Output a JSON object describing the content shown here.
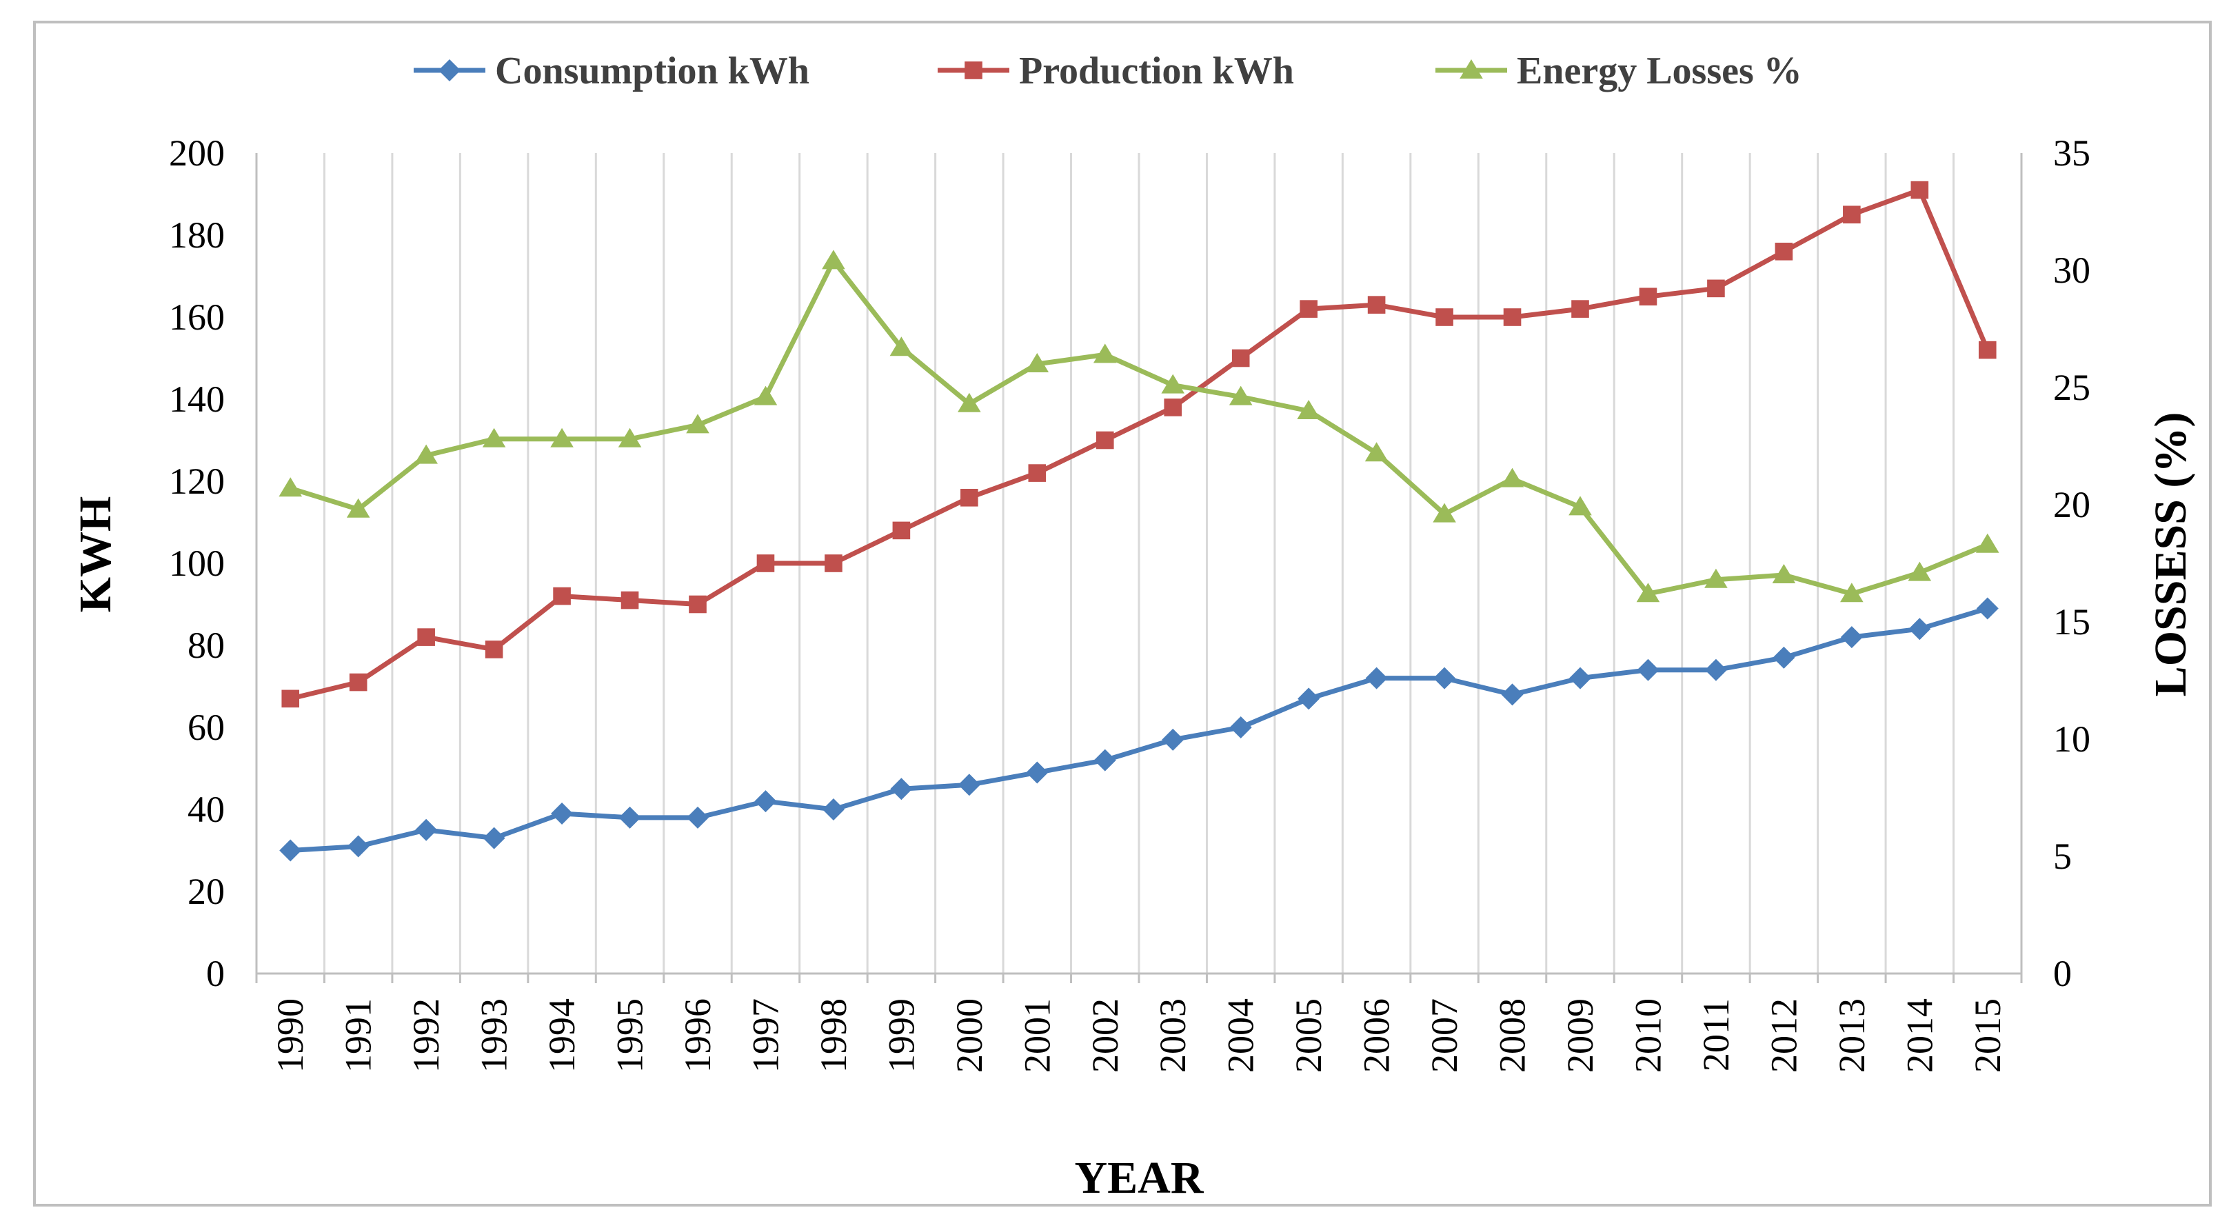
{
  "chart_data": {
    "type": "line",
    "categories": [
      "1990",
      "1991",
      "1992",
      "1993",
      "1994",
      "1995",
      "1996",
      "1997",
      "1998",
      "1999",
      "2000",
      "2001",
      "2002",
      "2003",
      "2004",
      "2005",
      "2006",
      "2007",
      "2008",
      "2009",
      "2010",
      "2011",
      "2012",
      "2013",
      "2014",
      "2015"
    ],
    "series": [
      {
        "name": "Consumption kWh",
        "axis": "left",
        "color": "#4a7ebb",
        "marker": "diamond",
        "values": [
          30,
          31,
          35,
          33,
          39,
          38,
          38,
          42,
          40,
          45,
          46,
          49,
          52,
          57,
          60,
          67,
          72,
          72,
          68,
          72,
          74,
          74,
          77,
          82,
          84,
          89
        ]
      },
      {
        "name": "Production kWh",
        "axis": "left",
        "color": "#c0504d",
        "marker": "square",
        "values": [
          67,
          71,
          82,
          79,
          92,
          91,
          90,
          100,
          100,
          108,
          116,
          122,
          130,
          138,
          150,
          162,
          163,
          160,
          160,
          162,
          165,
          167,
          176,
          185,
          191,
          152
        ]
      },
      {
        "name": "Energy Losses %",
        "axis": "right",
        "color": "#9bbb59",
        "marker": "triangle",
        "values": [
          20.7,
          19.8,
          22.1,
          22.8,
          22.8,
          22.8,
          23.4,
          24.6,
          30.4,
          26.7,
          24.3,
          26.0,
          26.4,
          25.1,
          24.6,
          24.0,
          22.2,
          19.6,
          21.1,
          19.9,
          16.2,
          16.8,
          17.0,
          16.2,
          17.1,
          18.3
        ]
      }
    ],
    "title": "",
    "xlabel": "YEAR",
    "ylabel": "KWH",
    "y2label": "LOSSESS (%)",
    "ylim": [
      0,
      200
    ],
    "y2lim": [
      0,
      35
    ],
    "yticks": [
      "0",
      "20",
      "40",
      "60",
      "80",
      "100",
      "120",
      "140",
      "160",
      "180",
      "200"
    ],
    "y2ticks": [
      "0",
      "5",
      "10",
      "15",
      "20",
      "25",
      "30",
      "35"
    ],
    "grid": "vertical",
    "legend_position": "top"
  }
}
